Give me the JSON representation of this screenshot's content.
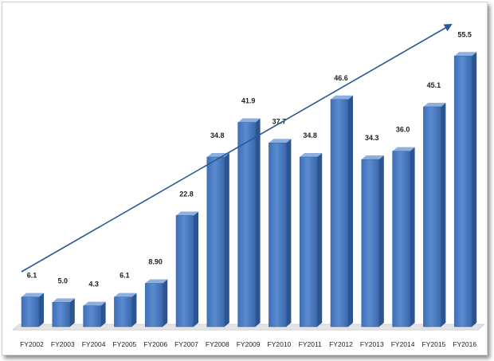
{
  "chart_data": {
    "type": "bar",
    "categories": [
      "FY2002",
      "FY2003",
      "FY2004",
      "FY2005",
      "FY2006",
      "FY2007",
      "FY2008",
      "FY2009",
      "FY2010",
      "FY2011",
      "FY2012",
      "FY2013",
      "FY2014",
      "FY2015",
      "FY2016"
    ],
    "values": [
      6.1,
      5.0,
      4.3,
      6.1,
      8.9,
      22.8,
      34.8,
      41.9,
      37.7,
      34.8,
      46.6,
      34.3,
      36.0,
      45.1,
      55.5
    ],
    "value_labels": [
      "6.1",
      "5.0",
      "4.3",
      "6.1",
      "8.90",
      "22.8",
      "34.8",
      "41.9",
      "37.7",
      "34.8",
      "46.6",
      "34.3",
      "36.0",
      "45.1",
      "55.5"
    ],
    "ylim": [
      0,
      58
    ],
    "grid": false,
    "legend": "none",
    "trend_arrow": true,
    "colors": {
      "bar_front": "#4a7cc4",
      "bar_side": "#2c5590",
      "bar_top": "#8db0e0",
      "trend": "#2a5a96",
      "floor": "#e4e4e4"
    }
  }
}
